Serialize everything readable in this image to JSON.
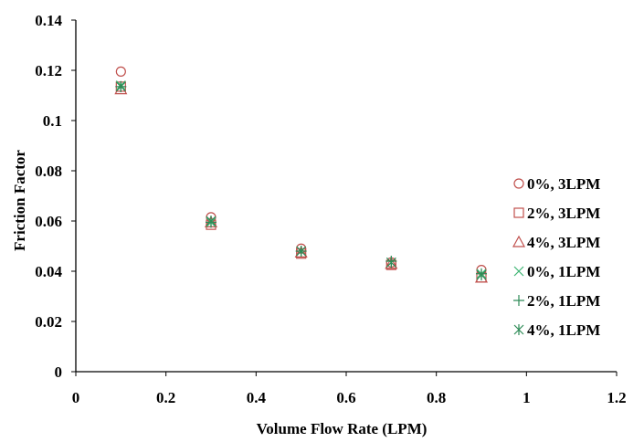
{
  "chart_data": {
    "type": "scatter",
    "xlabel": "Volume Flow Rate (LPM)",
    "ylabel": "Friction Factor",
    "xlim": [
      0,
      1.2
    ],
    "ylim": [
      0,
      0.14
    ],
    "xticks": [
      "0",
      "0.2",
      "0.4",
      "0.6",
      "0.8",
      "1",
      "1.2"
    ],
    "yticks": [
      "0",
      "0.02",
      "0.04",
      "0.06",
      "0.08",
      "0.1",
      "0.12",
      "0.14"
    ],
    "grid": false,
    "legend_position": "right",
    "series": [
      {
        "name": "0%, 3LPM",
        "marker": "circle",
        "color": "#c0504d",
        "x": [
          0.1,
          0.3,
          0.5,
          0.7,
          0.9
        ],
        "y": [
          0.1195,
          0.0615,
          0.049,
          0.0435,
          0.0405
        ]
      },
      {
        "name": "2%, 3LPM",
        "marker": "square",
        "color": "#c0504d",
        "x": [
          0.1,
          0.3,
          0.5,
          0.7,
          0.9
        ],
        "y": [
          0.1135,
          0.0585,
          0.047,
          0.0425,
          0.0375
        ]
      },
      {
        "name": "4%, 3LPM",
        "marker": "triangle",
        "color": "#c0504d",
        "x": [
          0.1,
          0.3,
          0.5,
          0.7,
          0.9
        ],
        "y": [
          0.1125,
          0.0595,
          0.0475,
          0.043,
          0.0375
        ]
      },
      {
        "name": "0%, 1LPM",
        "marker": "x",
        "color": "#3cb371",
        "x": [
          0.1,
          0.3,
          0.5,
          0.7,
          0.9
        ],
        "y": [
          0.114,
          0.0595,
          0.048,
          0.0435,
          0.039
        ]
      },
      {
        "name": "2%, 1LPM",
        "marker": "plus",
        "color": "#2e8b57",
        "x": [
          0.1,
          0.3,
          0.5,
          0.7,
          0.9
        ],
        "y": [
          0.1135,
          0.0595,
          0.048,
          0.044,
          0.039
        ]
      },
      {
        "name": "4%, 1LPM",
        "marker": "asterisk",
        "color": "#2e8b57",
        "x": [
          0.1,
          0.3,
          0.5,
          0.7,
          0.9
        ],
        "y": [
          0.1135,
          0.06,
          0.048,
          0.0435,
          0.0385
        ]
      }
    ]
  }
}
